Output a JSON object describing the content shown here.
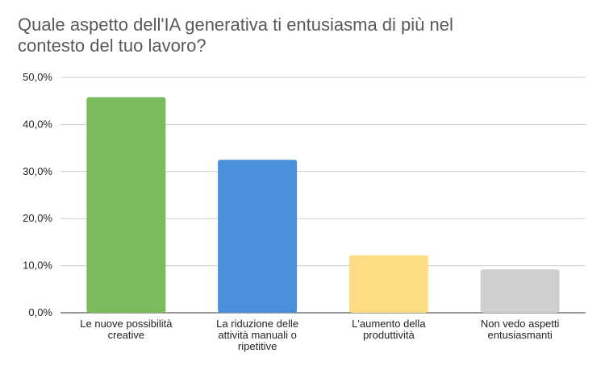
{
  "chart_data": {
    "type": "bar",
    "title_lines": [
      "Quale aspetto dell'IA generativa ti entusiasma di più nel",
      "contesto del tuo lavoro?"
    ],
    "categories": [
      [
        "Le nuove possibilità",
        "creative"
      ],
      [
        "La riduzione delle",
        "attività manuali o",
        "ripetitive"
      ],
      [
        "L'aumento della",
        "produttività"
      ],
      [
        "Non vedo aspetti",
        "entusiasmanti"
      ]
    ],
    "values": [
      45.8,
      32.5,
      12.2,
      9.2
    ],
    "colors": [
      "#7bbb5d",
      "#4a90d9",
      "#fddd84",
      "#cfcfcf"
    ],
    "y_ticks": [
      "0,0%",
      "10,0%",
      "20,0%",
      "30,0%",
      "40,0%",
      "50,0%"
    ],
    "ylim": [
      0,
      50
    ],
    "grid": true,
    "legend": "none"
  }
}
